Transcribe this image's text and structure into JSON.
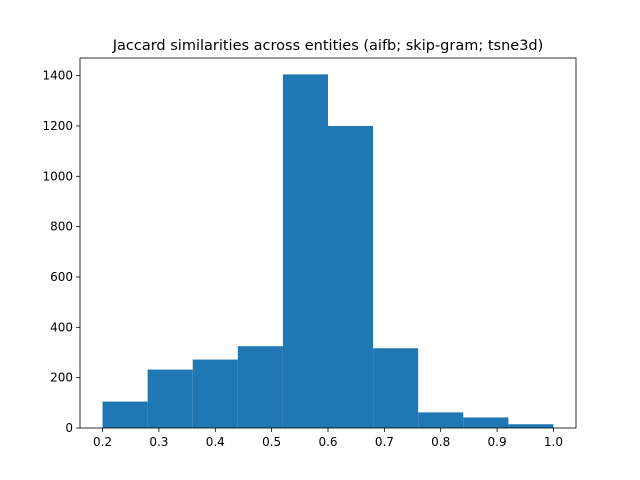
{
  "chart_data": {
    "type": "bar",
    "title": "Jaccard similarities across entities (aifb; skip-gram; tsne3d)",
    "xlabel": "",
    "ylabel": "",
    "xlim": [
      0.16,
      1.04
    ],
    "ylim": [
      0,
      1470
    ],
    "bin_edges": [
      0.2,
      0.28,
      0.36,
      0.44,
      0.52,
      0.6,
      0.68,
      0.76,
      0.84,
      0.92,
      1.0
    ],
    "values": [
      105,
      232,
      272,
      325,
      1405,
      1200,
      317,
      62,
      42,
      15
    ],
    "x_ticks": [
      "0.2",
      "0.3",
      "0.4",
      "0.5",
      "0.6",
      "0.7",
      "0.8",
      "0.9",
      "1.0"
    ],
    "y_ticks": [
      "0",
      "200",
      "400",
      "600",
      "800",
      "1000",
      "1200",
      "1400"
    ],
    "bar_color": "#1f77b4",
    "grid": false,
    "legend": "none"
  }
}
